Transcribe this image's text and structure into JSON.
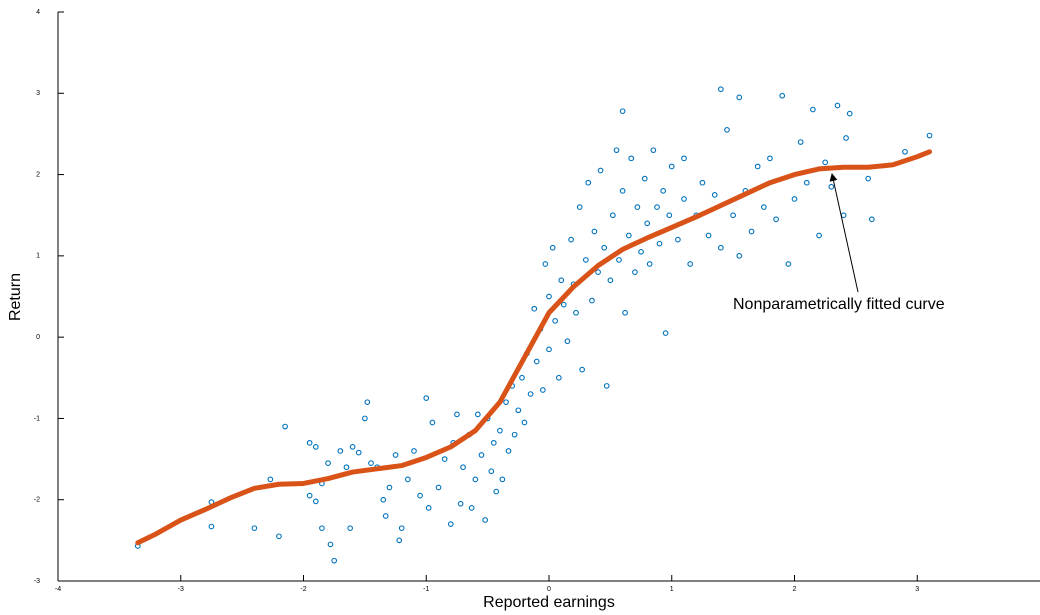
{
  "chart_data": {
    "type": "scatter",
    "x_label": "Reported earnings",
    "y_label": "Return",
    "annotation": "Nonparametrically fitted curve",
    "xlim": [
      -4,
      4
    ],
    "ylim": [
      -3,
      4
    ],
    "xticks": [
      -4,
      -3,
      -2,
      -1,
      0,
      1,
      2,
      3
    ],
    "yticks": [
      -3,
      -2,
      -1,
      0,
      1,
      2,
      3,
      4
    ],
    "color": "#0072bd",
    "x": [
      -3.35,
      -2.75,
      -2.75,
      -2.4,
      -2.2,
      -2.15,
      -2.27,
      -1.95,
      -1.95,
      -1.9,
      -1.9,
      -1.85,
      -1.8,
      -1.85,
      -1.78,
      -1.75,
      -1.7,
      -1.65,
      -1.62,
      -1.6,
      -1.55,
      -1.5,
      -1.48,
      -1.45,
      -1.4,
      -1.35,
      -1.33,
      -1.3,
      -1.25,
      -1.22,
      -1.2,
      -1.15,
      -1.1,
      -1.05,
      -1.0,
      -0.98,
      -0.95,
      -0.9,
      -0.85,
      -0.8,
      -0.78,
      -0.75,
      -0.72,
      -0.7,
      -0.65,
      -0.63,
      -0.6,
      -0.58,
      -0.55,
      -0.52,
      -0.5,
      -0.47,
      -0.45,
      -0.43,
      -0.4,
      -0.38,
      -0.35,
      -0.33,
      -0.3,
      -0.28,
      -0.25,
      -0.22,
      -0.2,
      -0.18,
      -0.15,
      -0.12,
      -0.1,
      -0.07,
      -0.05,
      -0.03,
      0,
      0,
      0.03,
      0.05,
      0.08,
      0.1,
      0.12,
      0.15,
      0.18,
      0.2,
      0.22,
      0.25,
      0.27,
      0.3,
      0.32,
      0.35,
      0.37,
      0.4,
      0.42,
      0.45,
      0.47,
      0.5,
      0.52,
      0.55,
      0.57,
      0.6,
      0.6,
      0.62,
      0.65,
      0.67,
      0.7,
      0.72,
      0.75,
      0.78,
      0.8,
      0.82,
      0.85,
      0.88,
      0.9,
      0.93,
      0.95,
      0.98,
      1.0,
      1.05,
      1.1,
      1.1,
      1.15,
      1.2,
      1.25,
      1.3,
      1.35,
      1.4,
      1.4,
      1.45,
      1.5,
      1.55,
      1.55,
      1.6,
      1.65,
      1.7,
      1.75,
      1.8,
      1.85,
      1.9,
      1.95,
      2.0,
      2.05,
      2.1,
      2.15,
      2.2,
      2.25,
      2.3,
      2.35,
      2.4,
      2.42,
      2.45,
      2.6,
      2.63,
      2.9,
      3.1
    ],
    "values": [
      -2.57,
      -2.03,
      -2.33,
      -2.35,
      -2.45,
      -1.1,
      -1.75,
      -1.3,
      -1.95,
      -2.02,
      -1.35,
      -1.8,
      -1.55,
      -2.35,
      -2.55,
      -2.75,
      -1.4,
      -1.6,
      -2.35,
      -1.35,
      -1.42,
      -1.0,
      -0.8,
      -1.55,
      -1.6,
      -2.0,
      -2.2,
      -1.85,
      -1.45,
      -2.5,
      -2.35,
      -1.75,
      -1.4,
      -1.95,
      -0.75,
      -2.1,
      -1.05,
      -1.85,
      -1.5,
      -2.3,
      -1.3,
      -0.95,
      -2.05,
      -1.6,
      -1.2,
      -2.1,
      -1.75,
      -0.95,
      -1.45,
      -2.25,
      -1.0,
      -1.65,
      -1.3,
      -1.9,
      -1.15,
      -1.75,
      -0.8,
      -1.4,
      -0.6,
      -1.2,
      -0.9,
      -0.5,
      -1.05,
      -0.2,
      -0.7,
      0.35,
      -0.3,
      0.1,
      -0.65,
      0.9,
      0.5,
      -0.15,
      1.1,
      0.2,
      -0.5,
      0.7,
      0.4,
      -0.05,
      1.2,
      0.65,
      0.3,
      1.6,
      -0.4,
      0.95,
      1.9,
      0.45,
      1.3,
      0.8,
      2.05,
      1.1,
      -0.6,
      0.7,
      1.5,
      2.3,
      0.95,
      1.8,
      2.78,
      0.3,
      1.25,
      2.2,
      0.8,
      1.6,
      1.05,
      1.95,
      1.4,
      0.9,
      2.3,
      1.6,
      1.15,
      1.8,
      0.05,
      1.5,
      2.1,
      1.2,
      1.7,
      2.2,
      0.9,
      1.5,
      1.9,
      1.25,
      1.75,
      3.05,
      1.1,
      2.55,
      1.5,
      2.95,
      1.0,
      1.8,
      1.3,
      2.1,
      1.6,
      2.2,
      1.45,
      2.97,
      0.9,
      1.7,
      2.4,
      1.9,
      2.8,
      1.25,
      2.15,
      1.85,
      2.85,
      1.5,
      2.45,
      2.75,
      1.95,
      1.45,
      2.28,
      2.48
    ],
    "fit": {
      "color": "#d95319",
      "x": [
        -3.35,
        -3.2,
        -3,
        -2.8,
        -2.6,
        -2.4,
        -2.2,
        -2,
        -1.8,
        -1.6,
        -1.4,
        -1.2,
        -1,
        -0.8,
        -0.6,
        -0.4,
        -0.2,
        0,
        0.2,
        0.4,
        0.6,
        0.8,
        1,
        1.2,
        1.4,
        1.6,
        1.8,
        2,
        2.2,
        2.4,
        2.6,
        2.8,
        3,
        3.1
      ],
      "values": [
        -2.53,
        -2.42,
        -2.25,
        -2.12,
        -1.98,
        -1.86,
        -1.81,
        -1.8,
        -1.74,
        -1.66,
        -1.62,
        -1.58,
        -1.48,
        -1.35,
        -1.15,
        -0.8,
        -0.25,
        0.3,
        0.62,
        0.88,
        1.08,
        1.22,
        1.35,
        1.48,
        1.62,
        1.76,
        1.9,
        2.0,
        2.07,
        2.09,
        2.09,
        2.12,
        2.22,
        2.28
      ]
    }
  }
}
